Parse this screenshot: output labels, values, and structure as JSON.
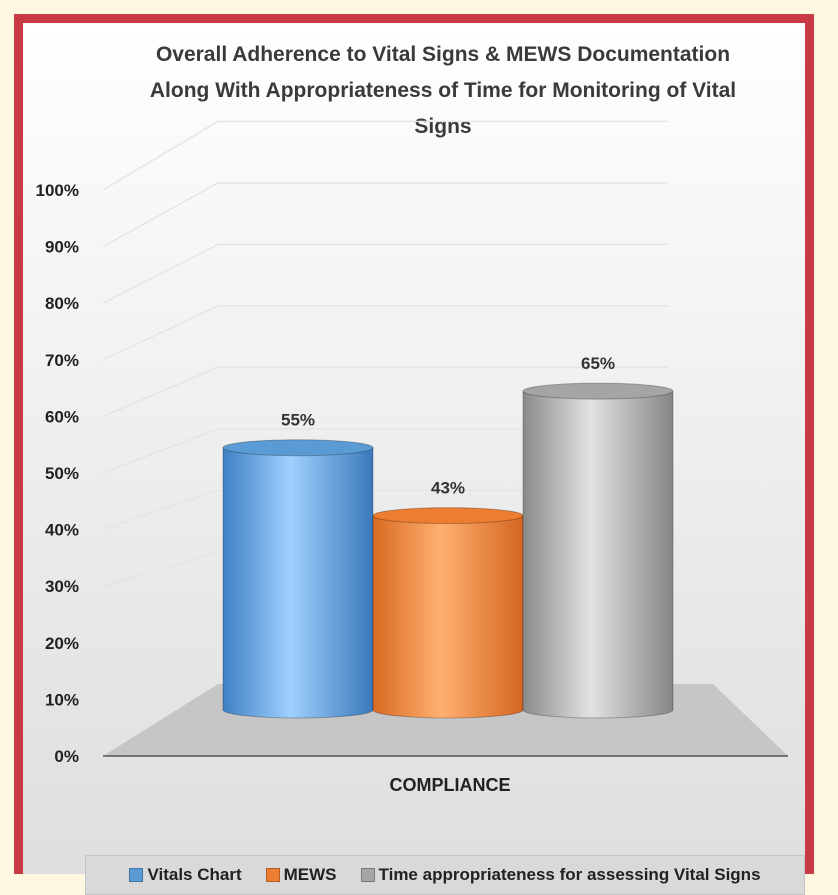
{
  "chart_data": {
    "type": "bar",
    "title_lines": [
      "Overall Adherence to Vital Signs  & MEWS Documentation",
      "Along With Appropriateness of Time for Monitoring of Vital",
      "Signs"
    ],
    "categories": [
      "COMPLIANCE"
    ],
    "xlabel": "COMPLIANCE",
    "ylabel": "",
    "ylim": [
      0,
      100
    ],
    "y_ticks": [
      "0%",
      "10%",
      "20%",
      "30%",
      "40%",
      "50%",
      "60%",
      "70%",
      "80%",
      "90%",
      "100%"
    ],
    "grid": true,
    "legend_position": "bottom",
    "style_3d": "cylinder",
    "series": [
      {
        "name": "Vitals Chart",
        "values": [
          55
        ],
        "label": "55%",
        "color": "#5b9bd5"
      },
      {
        "name": "MEWS",
        "values": [
          43
        ],
        "label": "43%",
        "color": "#ed7d31"
      },
      {
        "name": "Time appropriateness for assessing Vital Signs",
        "values": [
          65
        ],
        "label": "65%",
        "color": "#a5a5a5"
      }
    ]
  }
}
